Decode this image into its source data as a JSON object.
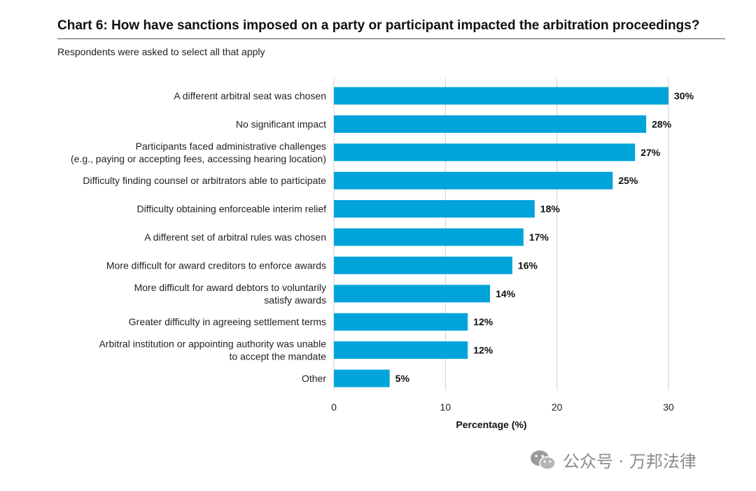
{
  "header": {
    "title": "Chart 6: How have sanctions imposed on a party or participant impacted the arbitration proceedings?",
    "subtitle": "Respondents were asked to select all that apply"
  },
  "watermark": {
    "text": "公众号 · 万邦法律",
    "icon": "wechat-icon"
  },
  "colors": {
    "bar": "#00A3DA",
    "grid": "#cfcfcf"
  },
  "chart_data": {
    "type": "bar",
    "orientation": "horizontal",
    "title": "Chart 6: How have sanctions imposed on a party or participant impacted the arbitration proceedings?",
    "xlabel": "Percentage (%)",
    "ylabel": "",
    "xlim": [
      0,
      30
    ],
    "xticks": [
      0,
      10,
      20,
      30
    ],
    "grid": true,
    "categories": [
      [
        "A different arbitral seat was chosen"
      ],
      [
        "No significant impact"
      ],
      [
        "Participants faced administrative challenges",
        "(e.g., paying or accepting fees, accessing hearing location)"
      ],
      [
        "Difficulty finding counsel or arbitrators able to participate"
      ],
      [
        "Difficulty obtaining enforceable interim relief"
      ],
      [
        "A different set of arbitral rules was chosen"
      ],
      [
        "More difficult for award creditors to enforce awards"
      ],
      [
        "More difficult for award debtors to voluntarily",
        "satisfy awards"
      ],
      [
        "Greater difficulty in agreeing settlement terms"
      ],
      [
        "Arbitral institution or appointing authority was unable",
        "to accept the mandate"
      ],
      [
        "Other"
      ]
    ],
    "values": [
      30,
      28,
      27,
      25,
      18,
      17,
      16,
      14,
      12,
      12,
      5
    ],
    "value_labels": [
      "30%",
      "28%",
      "27%",
      "25%",
      "18%",
      "17%",
      "16%",
      "14%",
      "12%",
      "12%",
      "5%"
    ]
  }
}
